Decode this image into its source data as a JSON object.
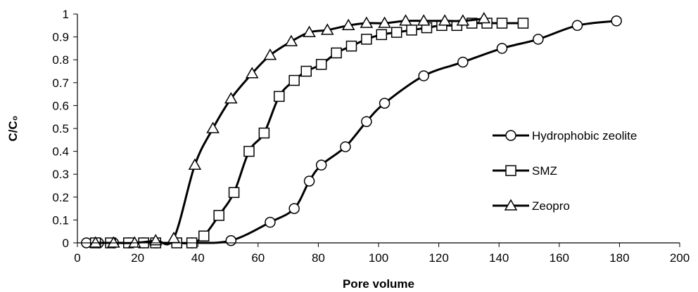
{
  "chart_data": {
    "type": "line",
    "title": "",
    "xlabel": "Pore volume",
    "ylabel": "C/C₀",
    "xlim": [
      0,
      200
    ],
    "ylim": [
      0,
      1
    ],
    "xticks": [
      0,
      20,
      40,
      60,
      80,
      100,
      120,
      140,
      160,
      180,
      200
    ],
    "yticks": [
      0,
      0.1,
      0.2,
      0.3,
      0.4,
      0.5,
      0.6,
      0.7,
      0.8,
      0.9,
      1
    ],
    "grid": false,
    "legend_position": "right",
    "series": [
      {
        "name": "Hydrophobic zeolite",
        "marker": "circle",
        "points": [
          [
            3,
            0
          ],
          [
            7,
            0
          ],
          [
            12,
            0
          ],
          [
            17,
            0
          ],
          [
            22,
            0
          ],
          [
            26,
            0
          ],
          [
            38,
            0
          ],
          [
            51,
            0.01
          ],
          [
            64,
            0.09
          ],
          [
            72,
            0.15
          ],
          [
            77,
            0.27
          ],
          [
            81,
            0.34
          ],
          [
            89,
            0.42
          ],
          [
            96,
            0.53
          ],
          [
            102,
            0.61
          ],
          [
            115,
            0.73
          ],
          [
            128,
            0.79
          ],
          [
            141,
            0.85
          ],
          [
            153,
            0.89
          ],
          [
            166,
            0.95
          ],
          [
            179,
            0.97
          ]
        ]
      },
      {
        "name": "SMZ",
        "marker": "square",
        "points": [
          [
            6,
            0
          ],
          [
            11,
            0
          ],
          [
            17,
            0
          ],
          [
            22,
            0
          ],
          [
            26,
            0
          ],
          [
            33,
            0
          ],
          [
            38,
            0
          ],
          [
            42,
            0.03
          ],
          [
            47,
            0.12
          ],
          [
            52,
            0.22
          ],
          [
            57,
            0.4
          ],
          [
            62,
            0.48
          ],
          [
            67,
            0.64
          ],
          [
            72,
            0.71
          ],
          [
            76,
            0.75
          ],
          [
            81,
            0.78
          ],
          [
            86,
            0.83
          ],
          [
            91,
            0.86
          ],
          [
            96,
            0.89
          ],
          [
            101,
            0.91
          ],
          [
            106,
            0.92
          ],
          [
            111,
            0.93
          ],
          [
            116,
            0.94
          ],
          [
            121,
            0.95
          ],
          [
            126,
            0.95
          ],
          [
            131,
            0.96
          ],
          [
            136,
            0.96
          ],
          [
            141,
            0.96
          ],
          [
            148,
            0.96
          ]
        ]
      },
      {
        "name": "Zeopro",
        "marker": "triangle",
        "points": [
          [
            6,
            0
          ],
          [
            12,
            0
          ],
          [
            19,
            0
          ],
          [
            26,
            0.01
          ],
          [
            32,
            0.02
          ],
          [
            39,
            0.34
          ],
          [
            45,
            0.5
          ],
          [
            51,
            0.63
          ],
          [
            58,
            0.74
          ],
          [
            64,
            0.82
          ],
          [
            71,
            0.88
          ],
          [
            77,
            0.92
          ],
          [
            83,
            0.93
          ],
          [
            90,
            0.95
          ],
          [
            96,
            0.96
          ],
          [
            102,
            0.96
          ],
          [
            109,
            0.97
          ],
          [
            115,
            0.97
          ],
          [
            122,
            0.97
          ],
          [
            128,
            0.97
          ],
          [
            135,
            0.98
          ]
        ]
      }
    ]
  }
}
